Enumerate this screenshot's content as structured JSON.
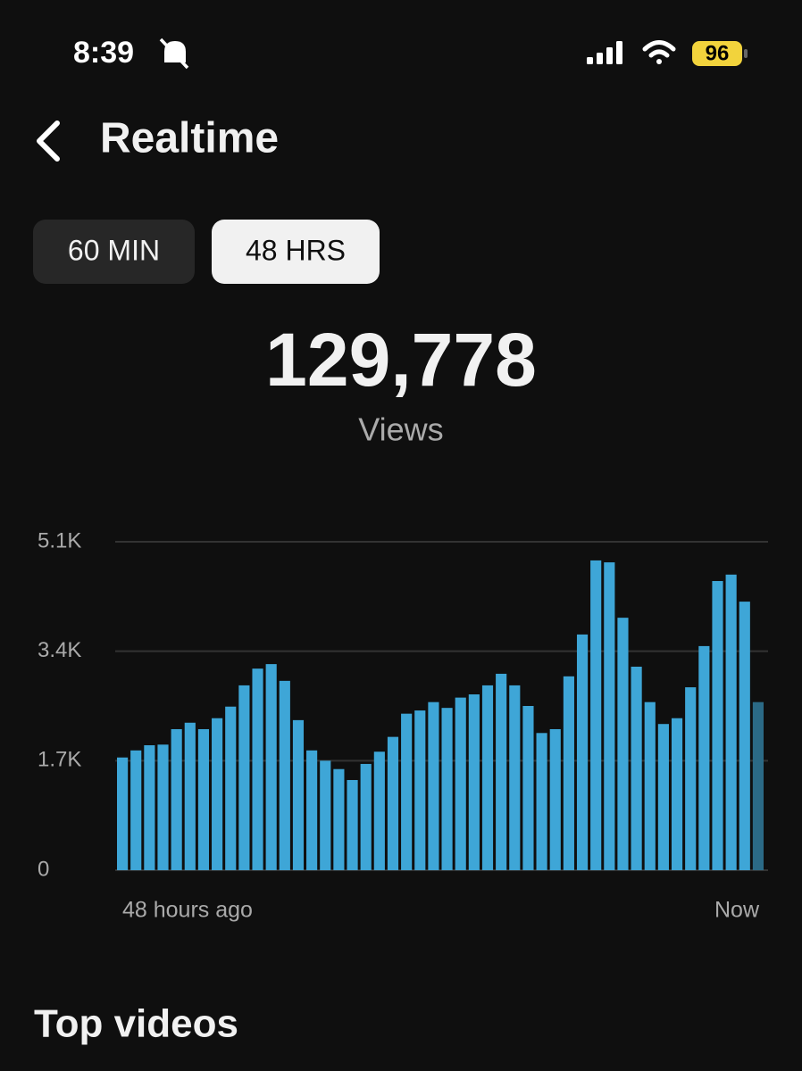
{
  "status_bar": {
    "time": "8:39",
    "battery": "96"
  },
  "header": {
    "title": "Realtime"
  },
  "tabs": [
    {
      "label": "60 MIN",
      "selected": false
    },
    {
      "label": "48 HRS",
      "selected": true
    }
  ],
  "summary": {
    "value": "129,778",
    "label": "Views"
  },
  "chart_data": {
    "type": "bar",
    "categories": [
      "48 hours ago",
      null,
      null,
      null,
      null,
      null,
      null,
      null,
      null,
      null,
      null,
      null,
      null,
      null,
      null,
      null,
      null,
      null,
      null,
      null,
      null,
      null,
      null,
      null,
      null,
      null,
      null,
      null,
      null,
      null,
      null,
      null,
      null,
      null,
      null,
      null,
      null,
      null,
      null,
      null,
      null,
      null,
      null,
      null,
      null,
      null,
      null,
      "Now"
    ],
    "values": [
      1750,
      1860,
      1940,
      1950,
      2190,
      2290,
      2190,
      2360,
      2540,
      2870,
      3130,
      3200,
      2940,
      2330,
      1860,
      1700,
      1570,
      1400,
      1650,
      1840,
      2070,
      2430,
      2480,
      2610,
      2520,
      2680,
      2730,
      2870,
      3050,
      2870,
      2550,
      2130,
      2190,
      3010,
      3660,
      4810,
      4780,
      3920,
      3160,
      2610,
      2270,
      2360,
      2840,
      3480,
      4490,
      4590,
      4170,
      2610
    ],
    "color": "#3ea6d7",
    "current_color": "#2b6a86",
    "ylim": [
      0,
      5100
    ],
    "yticks": [
      0,
      {
        "value": 1700,
        "label": "1.7K"
      },
      {
        "value": 3400,
        "label": "3.4K"
      },
      {
        "value": 5100,
        "label": "5.1K"
      }
    ],
    "grid": true
  },
  "section": {
    "title": "Top videos"
  }
}
